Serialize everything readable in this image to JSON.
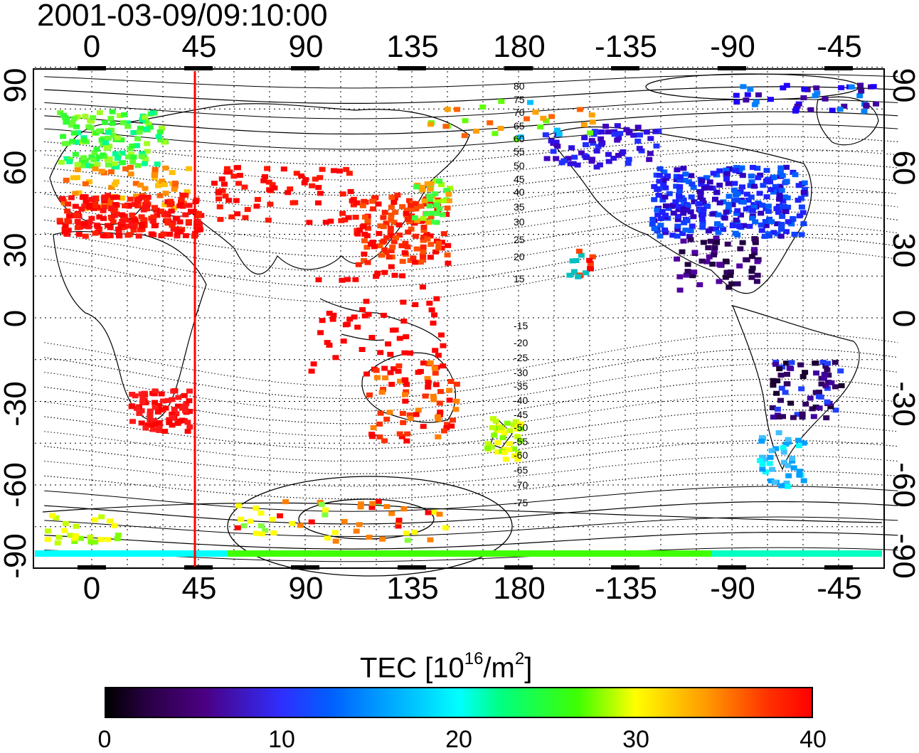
{
  "title": "2001-03-09/09:10:00",
  "axes": {
    "top_ticks": [
      "0",
      "45",
      "90",
      "135",
      "180",
      "-135",
      "-90",
      "-45"
    ],
    "bottom_ticks": [
      "0",
      "45",
      "90",
      "135",
      "180",
      "-135",
      "-90",
      "-45"
    ],
    "left_ticks": [
      "90",
      "60",
      "30",
      "0",
      "-30",
      "-60",
      "-90"
    ],
    "right_ticks": [
      "90",
      "60",
      "30",
      "0",
      "-30",
      "-60",
      "-90"
    ]
  },
  "map": {
    "longitude_range": [
      -20,
      340
    ],
    "latitude_range": [
      -95,
      95
    ],
    "grid": true,
    "terminator_longitude": 45,
    "contour_labels": [
      "80",
      "75",
      "70",
      "65",
      "60",
      "55",
      "50",
      "45",
      "40",
      "35",
      "30",
      "25",
      "20",
      "15",
      "-15",
      "-20",
      "-25",
      "-30",
      "-35",
      "-40",
      "-45",
      "-50",
      "-55",
      "-60",
      "-65",
      "-70",
      "-75"
    ]
  },
  "colorbar": {
    "title_main": "TEC  [10",
    "title_exp1": "16",
    "title_mid": "/m",
    "title_exp2": "2",
    "title_end": "]",
    "ticks": [
      "0",
      "10",
      "20",
      "30",
      "40"
    ],
    "min": 0,
    "max": 40
  },
  "colors": {
    "terminator": "#ff0000",
    "grid": "#000000"
  }
}
